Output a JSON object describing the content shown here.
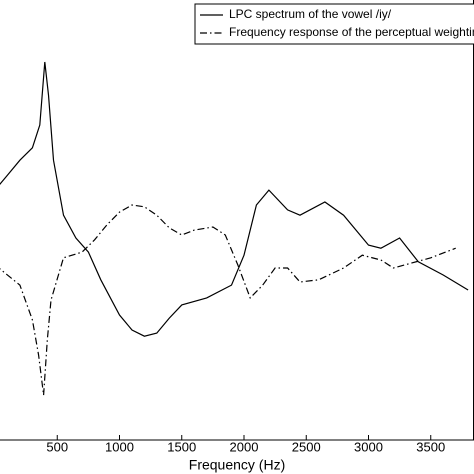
{
  "chart_data": {
    "type": "line",
    "xlabel": "Frequency (Hz)",
    "xlim": [
      0,
      4000
    ],
    "ylim": [
      0,
      100
    ],
    "xticks": [
      500,
      1000,
      1500,
      2000,
      2500,
      3000,
      3500
    ],
    "legend": "upper right",
    "series": [
      {
        "name": "LPC spectrum of the vowel /iy/",
        "color": "#000000",
        "linestyle": "solid",
        "x": [
          0,
          100,
          200,
          300,
          360,
          400,
          430,
          470,
          550,
          650,
          750,
          850,
          1000,
          1100,
          1200,
          1300,
          1400,
          1500,
          1700,
          1900,
          2000,
          2100,
          2200,
          2350,
          2450,
          2650,
          2800,
          3000,
          3100,
          3250,
          3400,
          3600,
          3800
        ],
        "values": [
          56.8,
          60.2,
          63.6,
          66.4,
          71.6,
          85.9,
          78.4,
          63.6,
          51.1,
          45.9,
          42.7,
          36.4,
          28.4,
          25,
          23.6,
          24.3,
          27.7,
          30.7,
          32.3,
          35.2,
          42,
          53.4,
          56.8,
          52.3,
          51.1,
          54.1,
          51.1,
          44.3,
          43.6,
          45.9,
          40.5,
          37.5,
          34.1
        ]
      },
      {
        "name": "Frequency response of the perceptual weighting filter",
        "color": "#000000",
        "linestyle": "dashdot",
        "x": [
          0,
          200,
          300,
          350,
          390,
          420,
          450,
          550,
          700,
          800,
          900,
          1000,
          1100,
          1200,
          1300,
          1400,
          1500,
          1600,
          1750,
          1850,
          1950,
          2050,
          2150,
          2250,
          2350,
          2450,
          2600,
          2800,
          2950,
          3100,
          3200,
          3500,
          3700
        ],
        "values": [
          39.8,
          35.2,
          27.3,
          19.3,
          10.2,
          22.7,
          31.8,
          41.4,
          42.7,
          45.5,
          48.9,
          51.8,
          53.4,
          53,
          51.1,
          48.2,
          46.6,
          47.7,
          48.4,
          46.6,
          39.8,
          32.3,
          35.2,
          39.1,
          39.1,
          35.9,
          36.4,
          39.1,
          42,
          40.9,
          39.1,
          41.4,
          43.6
        ]
      }
    ]
  }
}
